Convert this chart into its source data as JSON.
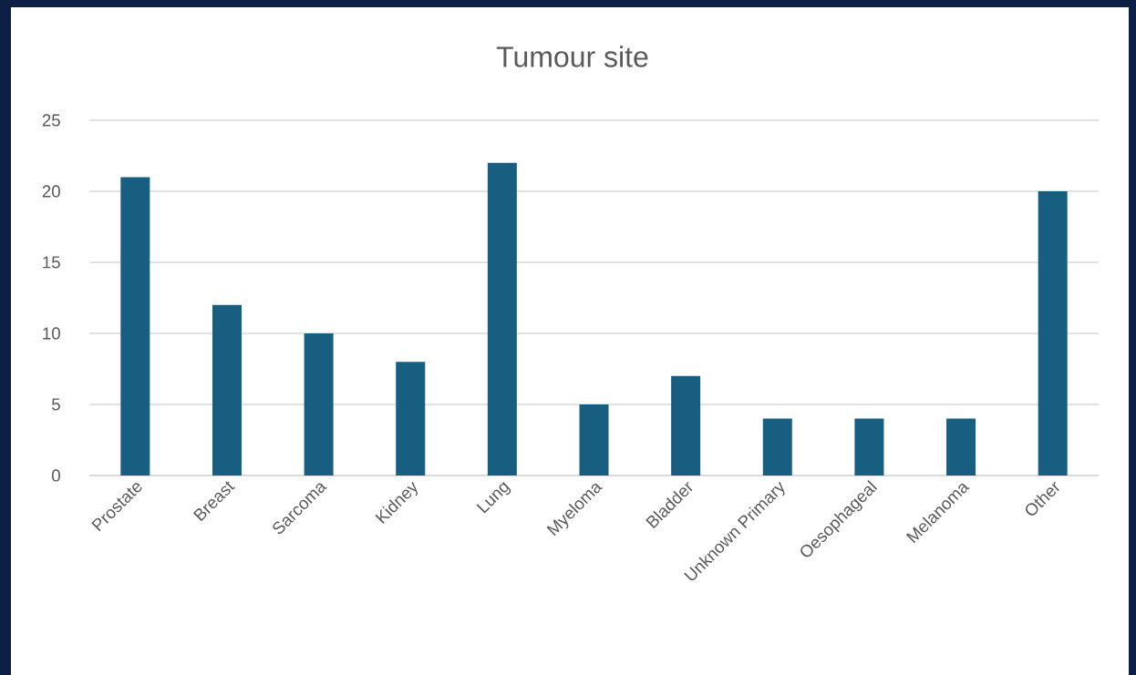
{
  "chart_data": {
    "type": "bar",
    "title": "Tumour site",
    "categories": [
      "Prostate",
      "Breast",
      "Sarcoma",
      "Kidney",
      "Lung",
      "Myeloma",
      "Bladder",
      "Unknown Primary",
      "Oesophageal",
      "Melanoma",
      "Other"
    ],
    "values": [
      21,
      12,
      10,
      8,
      22,
      5,
      7,
      4,
      4,
      4,
      20
    ],
    "color": "#175e80",
    "ylim": [
      0,
      25
    ],
    "yticks": [
      0,
      5,
      10,
      15,
      20,
      25
    ],
    "grid": "y"
  }
}
